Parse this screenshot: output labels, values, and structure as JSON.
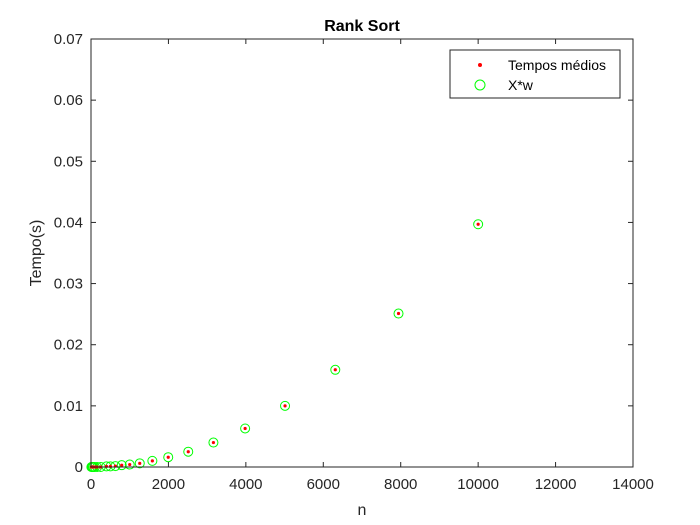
{
  "chart_data": {
    "type": "scatter",
    "title": "Rank Sort",
    "xlabel": "n",
    "ylabel": "Tempo(s)",
    "xlim": [
      0,
      14000
    ],
    "ylim": [
      0,
      0.07
    ],
    "xticks": [
      "0",
      "2000",
      "4000",
      "6000",
      "8000",
      "10000",
      "12000",
      "14000"
    ],
    "yticks": [
      "0",
      "0.01",
      "0.02",
      "0.03",
      "0.04",
      "0.05",
      "0.06",
      "0.07"
    ],
    "grid": false,
    "legend_position": "top-right",
    "colors": {
      "tempos": "#ff0000",
      "fit": "#00ff00",
      "axis": "#262626"
    },
    "series": [
      {
        "name": "Tempos médios",
        "marker": "dot",
        "x": [
          10,
          25,
          40,
          63,
          100,
          158,
          251,
          398,
          501,
          631,
          794,
          1000,
          1259,
          1585,
          1995,
          2512,
          3162,
          3981,
          5012,
          6310,
          7943,
          10000
        ],
        "y": [
          0,
          0,
          0,
          0,
          1e-06,
          1e-06,
          2e-06,
          0.0001,
          0.0001,
          0.00015,
          0.0003,
          0.0004,
          0.0006,
          0.001,
          0.0016,
          0.0025,
          0.004,
          0.0063,
          0.01,
          0.0159,
          0.0251,
          0.0397
        ]
      },
      {
        "name": "X*w",
        "marker": "circle",
        "x": [
          10,
          25,
          40,
          63,
          100,
          158,
          251,
          398,
          501,
          631,
          794,
          1000,
          1259,
          1585,
          1995,
          2512,
          3162,
          3981,
          5012,
          6310,
          7943,
          10000
        ],
        "y": [
          0,
          0,
          0,
          0,
          1e-06,
          1e-06,
          2e-06,
          0.0001,
          0.0001,
          0.00015,
          0.0003,
          0.0004,
          0.0006,
          0.001,
          0.0016,
          0.0025,
          0.004,
          0.0063,
          0.01,
          0.0159,
          0.0251,
          0.0397
        ]
      }
    ]
  }
}
